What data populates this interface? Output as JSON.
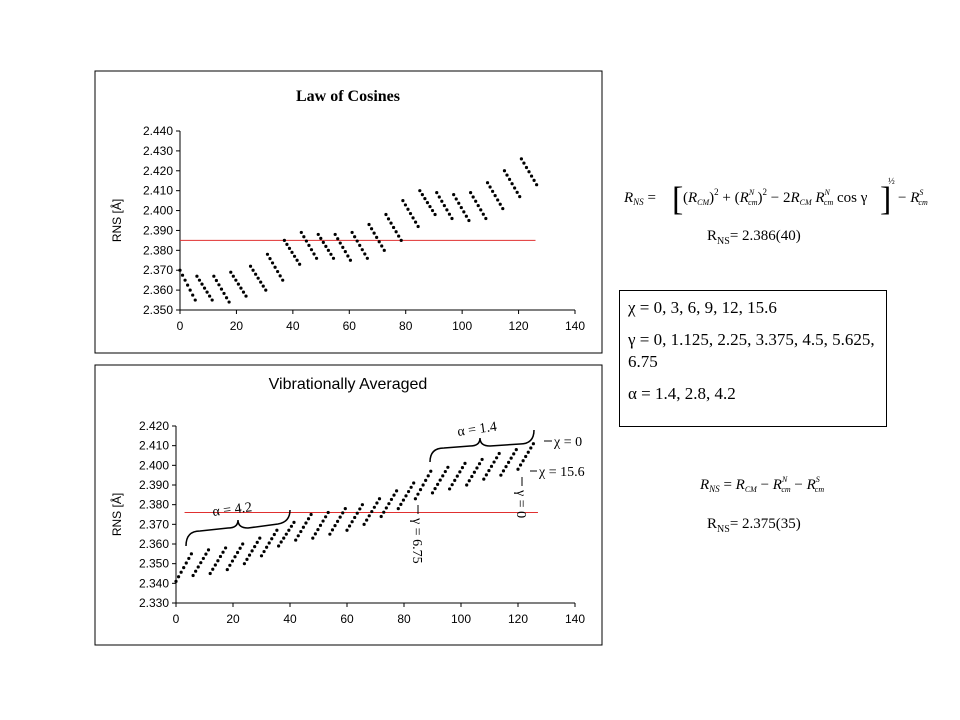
{
  "chart_data": [
    {
      "type": "scatter",
      "title": "Law of Cosines",
      "ylabel": "RNS [Å]",
      "xlim": [
        0,
        140
      ],
      "ylim": [
        2.35,
        2.44
      ],
      "xticks": [
        "0",
        "20",
        "40",
        "60",
        "80",
        "100",
        "120",
        "140"
      ],
      "yticks": [
        "2.350",
        "2.360",
        "2.370",
        "2.380",
        "2.390",
        "2.400",
        "2.410",
        "2.420",
        "2.430",
        "2.440"
      ],
      "reference_line_y": 2.385,
      "reference_line_x": [
        0,
        126
      ],
      "reference_color": "#e03030",
      "groups": [
        {
          "x_start": 0,
          "y_start": 2.37,
          "y_end": 2.355
        },
        {
          "x_start": 6,
          "y_start": 2.367,
          "y_end": 2.355
        },
        {
          "x_start": 12,
          "y_start": 2.367,
          "y_end": 2.354
        },
        {
          "x_start": 18,
          "y_start": 2.369,
          "y_end": 2.357
        },
        {
          "x_start": 25,
          "y_start": 2.372,
          "y_end": 2.36
        },
        {
          "x_start": 31,
          "y_start": 2.378,
          "y_end": 2.365
        },
        {
          "x_start": 37,
          "y_start": 2.385,
          "y_end": 2.373
        },
        {
          "x_start": 43,
          "y_start": 2.389,
          "y_end": 2.376
        },
        {
          "x_start": 49,
          "y_start": 2.388,
          "y_end": 2.376
        },
        {
          "x_start": 55,
          "y_start": 2.388,
          "y_end": 2.375
        },
        {
          "x_start": 61,
          "y_start": 2.389,
          "y_end": 2.376
        },
        {
          "x_start": 67,
          "y_start": 2.393,
          "y_end": 2.38
        },
        {
          "x_start": 73,
          "y_start": 2.398,
          "y_end": 2.385
        },
        {
          "x_start": 79,
          "y_start": 2.405,
          "y_end": 2.392
        },
        {
          "x_start": 85,
          "y_start": 2.41,
          "y_end": 2.398
        },
        {
          "x_start": 91,
          "y_start": 2.409,
          "y_end": 2.396
        },
        {
          "x_start": 97,
          "y_start": 2.408,
          "y_end": 2.395
        },
        {
          "x_start": 103,
          "y_start": 2.409,
          "y_end": 2.396
        },
        {
          "x_start": 109,
          "y_start": 2.414,
          "y_end": 2.401
        },
        {
          "x_start": 115,
          "y_start": 2.42,
          "y_end": 2.407
        },
        {
          "x_start": 121,
          "y_start": 2.426,
          "y_end": 2.413
        }
      ]
    },
    {
      "type": "scatter",
      "title": "Vibrationally Averaged",
      "ylabel": "RNS [Å]",
      "xlim": [
        0,
        140
      ],
      "ylim": [
        2.33,
        2.42
      ],
      "xticks": [
        "0",
        "20",
        "40",
        "60",
        "80",
        "100",
        "120",
        "140"
      ],
      "yticks": [
        "2.330",
        "2.340",
        "2.350",
        "2.360",
        "2.370",
        "2.380",
        "2.390",
        "2.400",
        "2.410",
        "2.420"
      ],
      "reference_line_y": 2.376,
      "reference_line_x": [
        3,
        127
      ],
      "reference_color": "#e03030",
      "groups": [
        {
          "x_start": 0,
          "y_start": 2.341,
          "y_end": 2.355
        },
        {
          "x_start": 6,
          "y_start": 2.344,
          "y_end": 2.357
        },
        {
          "x_start": 12,
          "y_start": 2.345,
          "y_end": 2.358
        },
        {
          "x_start": 18,
          "y_start": 2.347,
          "y_end": 2.36
        },
        {
          "x_start": 24,
          "y_start": 2.35,
          "y_end": 2.363
        },
        {
          "x_start": 30,
          "y_start": 2.354,
          "y_end": 2.367
        },
        {
          "x_start": 36,
          "y_start": 2.359,
          "y_end": 2.371
        },
        {
          "x_start": 42,
          "y_start": 2.362,
          "y_end": 2.375
        },
        {
          "x_start": 48,
          "y_start": 2.363,
          "y_end": 2.376
        },
        {
          "x_start": 54,
          "y_start": 2.365,
          "y_end": 2.378
        },
        {
          "x_start": 60,
          "y_start": 2.367,
          "y_end": 2.38
        },
        {
          "x_start": 66,
          "y_start": 2.37,
          "y_end": 2.383
        },
        {
          "x_start": 72,
          "y_start": 2.374,
          "y_end": 2.387
        },
        {
          "x_start": 78,
          "y_start": 2.378,
          "y_end": 2.391
        },
        {
          "x_start": 84,
          "y_start": 2.383,
          "y_end": 2.397
        },
        {
          "x_start": 90,
          "y_start": 2.386,
          "y_end": 2.399
        },
        {
          "x_start": 96,
          "y_start": 2.388,
          "y_end": 2.401
        },
        {
          "x_start": 102,
          "y_start": 2.39,
          "y_end": 2.403
        },
        {
          "x_start": 108,
          "y_start": 2.393,
          "y_end": 2.406
        },
        {
          "x_start": 114,
          "y_start": 2.395,
          "y_end": 2.408
        },
        {
          "x_start": 120,
          "y_start": 2.398,
          "y_end": 2.411
        }
      ],
      "annotations": {
        "alpha_left": "α = 4.2",
        "alpha_right": "α = 1.4",
        "chi_top": "χ = 0",
        "chi_bottom": "χ = 15.6",
        "gamma_left": "γ = 6.75",
        "gamma_right": "γ = 0"
      }
    }
  ],
  "equations": {
    "eq1_value_prefix": "R",
    "eq1_value_sub": "NS",
    "eq1_value": "= 2.386(40)",
    "eq2_value_prefix": "R",
    "eq2_value_sub": "NS",
    "eq2_value": "= 2.375(35)"
  },
  "info_box": {
    "line1": "χ = 0, 3, 6, 9, 12, 15.6",
    "line2": "γ = 0, 1.125, 2.25, 3.375, 4.5, 5.625, 6.75",
    "line3": "α = 1.4, 2.8, 4.2"
  }
}
